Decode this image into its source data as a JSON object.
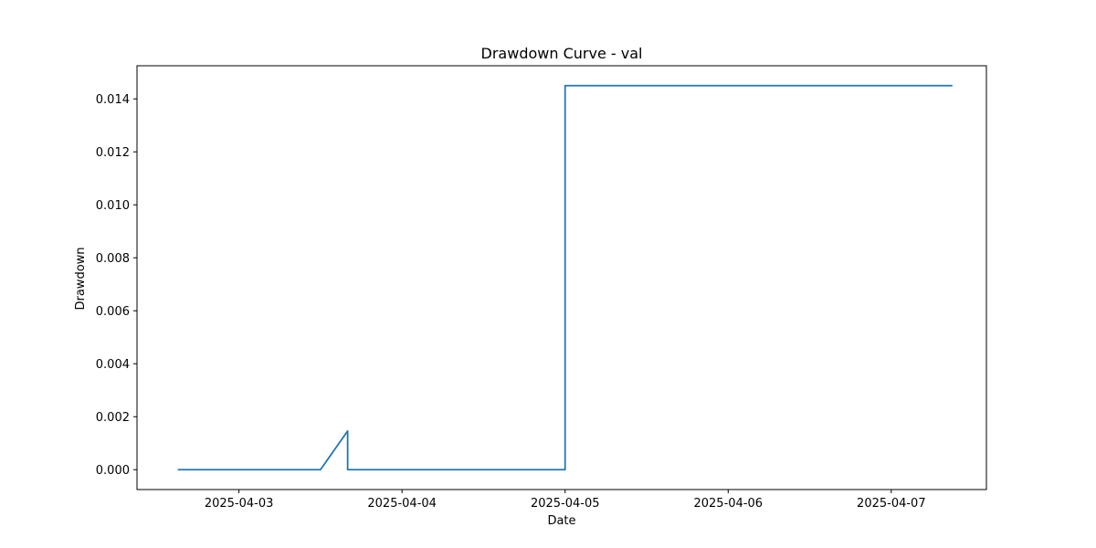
{
  "chart_data": {
    "type": "line",
    "title": "Drawdown Curve - val",
    "xlabel": "Date",
    "ylabel": "Drawdown",
    "x_ticks": [
      "2025-04-03",
      "2025-04-04",
      "2025-04-05",
      "2025-04-06",
      "2025-04-07"
    ],
    "y_ticks": [
      "0.000",
      "0.002",
      "0.004",
      "0.006",
      "0.008",
      "0.010",
      "0.012",
      "0.014"
    ],
    "xlim": [
      "2025-04-02 09:00",
      "2025-04-07 14:00"
    ],
    "ylim": [
      -0.00075,
      0.01525
    ],
    "grid": false,
    "color": "#1f77b4",
    "series": [
      {
        "x": [
          "2025-04-02 15:00",
          "2025-04-03 12:00",
          "2025-04-03 16:00",
          "2025-04-03 16:00",
          "2025-04-05 00:00",
          "2025-04-05 00:00",
          "2025-04-07 09:00"
        ],
        "values": [
          0.0,
          0.0,
          0.00146,
          0.0,
          0.0,
          0.0145,
          0.0145
        ]
      }
    ]
  }
}
